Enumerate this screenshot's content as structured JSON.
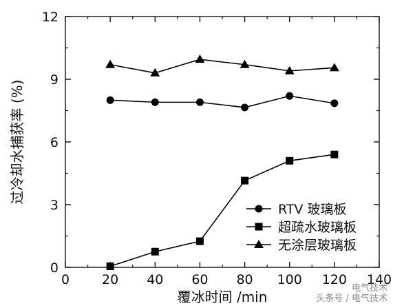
{
  "chart_data": {
    "type": "line",
    "xlabel": "覆冰时间 /min",
    "ylabel": "过冷却水捕获率 (%)",
    "xlim": [
      0,
      140
    ],
    "ylim": [
      0,
      12
    ],
    "xticks": [
      0,
      20,
      40,
      60,
      80,
      100,
      120,
      140
    ],
    "yticks": [
      0,
      3,
      6,
      9,
      12
    ],
    "grid": false,
    "legend_position": "bottom-right",
    "x": [
      20,
      40,
      60,
      80,
      100,
      120
    ],
    "series": [
      {
        "name": "RTV 玻璃板",
        "marker": "circle",
        "values": [
          8.0,
          7.9,
          7.9,
          7.65,
          8.2,
          7.85
        ]
      },
      {
        "name": "超疏水玻璃板",
        "marker": "square",
        "values": [
          0.05,
          0.75,
          1.25,
          4.15,
          5.1,
          5.4
        ]
      },
      {
        "name": "无涂层玻璃板",
        "marker": "triangle",
        "values": [
          9.7,
          9.3,
          9.95,
          9.7,
          9.4,
          9.55
        ]
      }
    ]
  },
  "watermark": {
    "line1": "电气技术",
    "line2": "头条号 / 电气技术"
  }
}
